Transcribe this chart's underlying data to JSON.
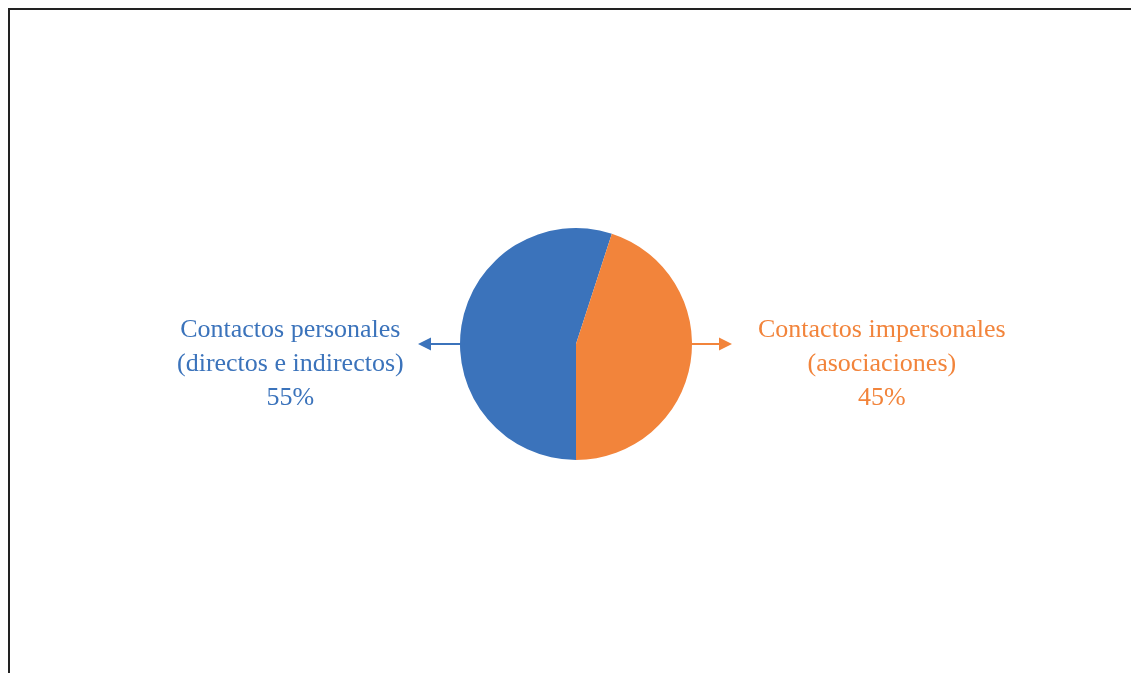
{
  "chart_data": {
    "type": "pie",
    "categories": [
      "Contactos personales (directos e indirectos)",
      "Contactos impersonales (asociaciones)"
    ],
    "values": [
      55,
      45
    ],
    "colors": [
      "#3b73bb",
      "#f2843b"
    ],
    "value_labels": [
      "55%",
      "45%"
    ]
  }
}
